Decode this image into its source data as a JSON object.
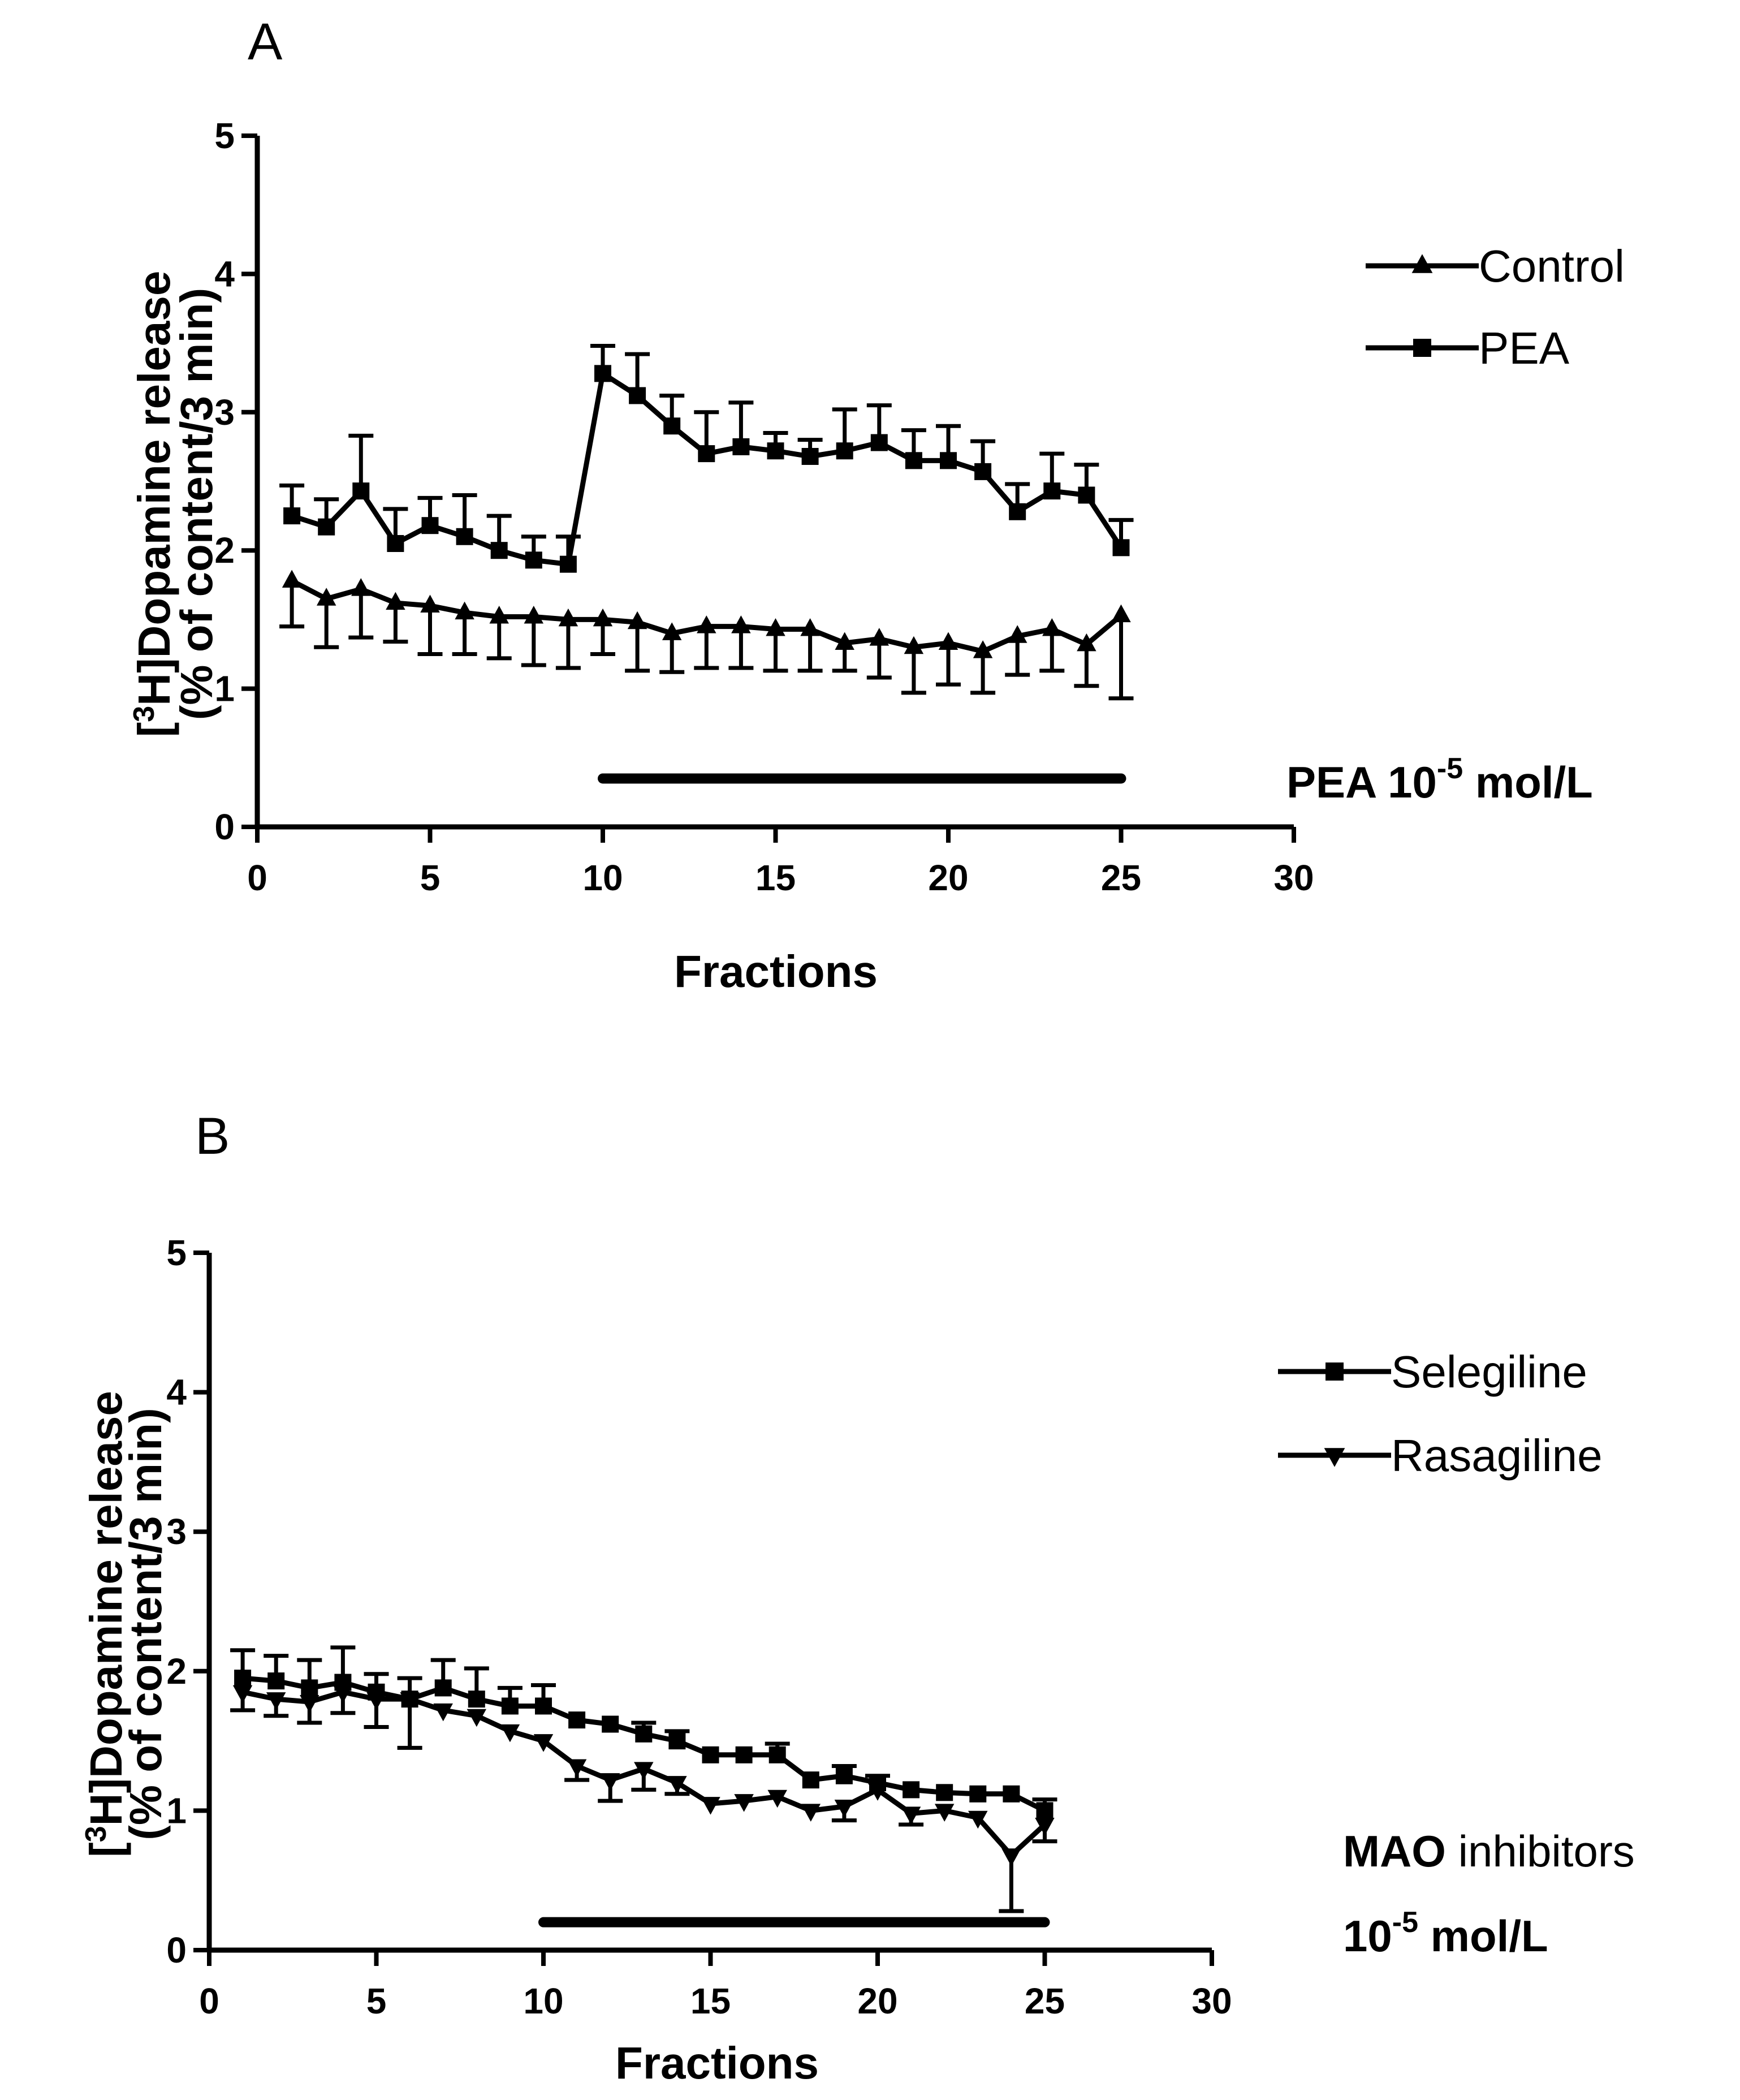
{
  "chart_data": [
    {
      "type": "line",
      "panel_label": "A",
      "xlabel": "Fractions",
      "ylabel_line1": "[3H]Dopamine release",
      "ylabel_line2": "(% of content/3 min)",
      "ylabel_parts": {
        "bracket": "[",
        "sup": "3",
        "rest": "H]Dopamine release"
      },
      "xlim": [
        0,
        30
      ],
      "ylim": [
        0,
        5
      ],
      "xticks": [
        0,
        5,
        10,
        15,
        20,
        25,
        30
      ],
      "yticks": [
        0,
        1,
        2,
        3,
        4,
        5
      ],
      "legend_position": "top-right",
      "series": [
        {
          "name": "Control",
          "marker": "triangle-up",
          "x": [
            1,
            2,
            3,
            4,
            5,
            6,
            7,
            8,
            9,
            10,
            11,
            12,
            13,
            14,
            15,
            16,
            17,
            18,
            19,
            20,
            21,
            22,
            23,
            24,
            25
          ],
          "values": [
            1.78,
            1.65,
            1.72,
            1.62,
            1.6,
            1.55,
            1.52,
            1.52,
            1.5,
            1.5,
            1.48,
            1.4,
            1.45,
            1.45,
            1.43,
            1.43,
            1.33,
            1.36,
            1.3,
            1.33,
            1.27,
            1.38,
            1.43,
            1.32,
            1.53
          ],
          "error": [
            0.33,
            0.35,
            0.35,
            0.28,
            0.35,
            0.3,
            0.3,
            0.35,
            0.35,
            0.25,
            0.35,
            0.28,
            0.3,
            0.3,
            0.3,
            0.3,
            0.2,
            0.28,
            0.33,
            0.3,
            0.3,
            0.28,
            0.3,
            0.3,
            0.6
          ],
          "error_direction": "down"
        },
        {
          "name": "PEA",
          "marker": "square",
          "x": [
            1,
            2,
            3,
            4,
            5,
            6,
            7,
            8,
            9,
            10,
            11,
            12,
            13,
            14,
            15,
            16,
            17,
            18,
            19,
            20,
            21,
            22,
            23,
            24,
            25
          ],
          "values": [
            2.25,
            2.17,
            2.43,
            2.05,
            2.18,
            2.1,
            2.0,
            1.93,
            1.9,
            3.28,
            3.12,
            2.9,
            2.7,
            2.75,
            2.72,
            2.68,
            2.72,
            2.78,
            2.65,
            2.65,
            2.57,
            2.28,
            2.43,
            2.4,
            2.02
          ],
          "error": [
            0.22,
            0.2,
            0.4,
            0.25,
            0.2,
            0.3,
            0.25,
            0.17,
            0.2,
            0.2,
            0.3,
            0.22,
            0.3,
            0.32,
            0.13,
            0.12,
            0.3,
            0.27,
            0.22,
            0.25,
            0.22,
            0.2,
            0.27,
            0.22,
            0.2
          ],
          "error_direction": "up"
        }
      ],
      "treatment_bar": {
        "from": 10,
        "to": 25,
        "y": 0.35
      },
      "annotation": {
        "pre": "PEA 10",
        "sup": "-5",
        "post": " mol/L"
      }
    },
    {
      "type": "line",
      "panel_label": "B",
      "xlabel": "Fractions",
      "ylabel_line1": "[3H]Dopamine release",
      "ylabel_line2": "(% of content/3 min)",
      "ylabel_parts": {
        "bracket": "[",
        "sup": "3",
        "rest": "H]Dopamine release"
      },
      "xlim": [
        0,
        30
      ],
      "ylim": [
        0,
        5
      ],
      "xticks": [
        0,
        5,
        10,
        15,
        20,
        25,
        30
      ],
      "yticks": [
        0,
        1,
        2,
        3,
        4,
        5
      ],
      "legend_position": "top-right",
      "series": [
        {
          "name": "Selegiline",
          "marker": "square",
          "x": [
            1,
            2,
            3,
            4,
            5,
            6,
            7,
            8,
            9,
            10,
            11,
            12,
            13,
            14,
            15,
            16,
            17,
            18,
            19,
            20,
            21,
            22,
            23,
            24,
            25
          ],
          "values": [
            1.95,
            1.93,
            1.88,
            1.92,
            1.85,
            1.8,
            1.88,
            1.8,
            1.75,
            1.75,
            1.65,
            1.62,
            1.55,
            1.5,
            1.4,
            1.4,
            1.4,
            1.22,
            1.25,
            1.2,
            1.15,
            1.13,
            1.12,
            1.12,
            1.0
          ],
          "error": [
            0.2,
            0.18,
            0.2,
            0.25,
            0.13,
            0.15,
            0.2,
            0.22,
            0.13,
            0.15,
            0.0,
            0.0,
            0.08,
            0.07,
            0.0,
            0.0,
            0.08,
            0.0,
            0.07,
            0.05,
            0.0,
            0.0,
            0.0,
            0.0,
            0.08
          ],
          "error_direction": "up"
        },
        {
          "name": "Rasagiline",
          "marker": "triangle-down",
          "x": [
            1,
            2,
            3,
            4,
            5,
            6,
            7,
            8,
            9,
            10,
            11,
            12,
            13,
            14,
            15,
            16,
            17,
            18,
            19,
            20,
            21,
            22,
            23,
            24,
            25
          ],
          "values": [
            1.85,
            1.8,
            1.78,
            1.85,
            1.8,
            1.8,
            1.72,
            1.68,
            1.57,
            1.5,
            1.32,
            1.22,
            1.3,
            1.2,
            1.05,
            1.07,
            1.1,
            1.0,
            1.03,
            1.15,
            0.98,
            1.0,
            0.95,
            0.68,
            0.9
          ],
          "error": [
            0.13,
            0.12,
            0.15,
            0.15,
            0.2,
            0.35,
            0.0,
            0.0,
            0.0,
            0.0,
            0.1,
            0.15,
            0.15,
            0.08,
            0.0,
            0.0,
            0.0,
            0.0,
            0.1,
            0.0,
            0.08,
            0.0,
            0.0,
            0.4,
            0.12
          ],
          "error_direction": "down"
        }
      ],
      "treatment_bar": {
        "from": 10,
        "to": 25,
        "y": 0.2
      },
      "annotation": {
        "line1_bold": "MAO",
        "line1_normal": " inhibitors",
        "line2_pre": "10",
        "line2_sup": "-5",
        "line2_post": " mol/L"
      }
    }
  ]
}
